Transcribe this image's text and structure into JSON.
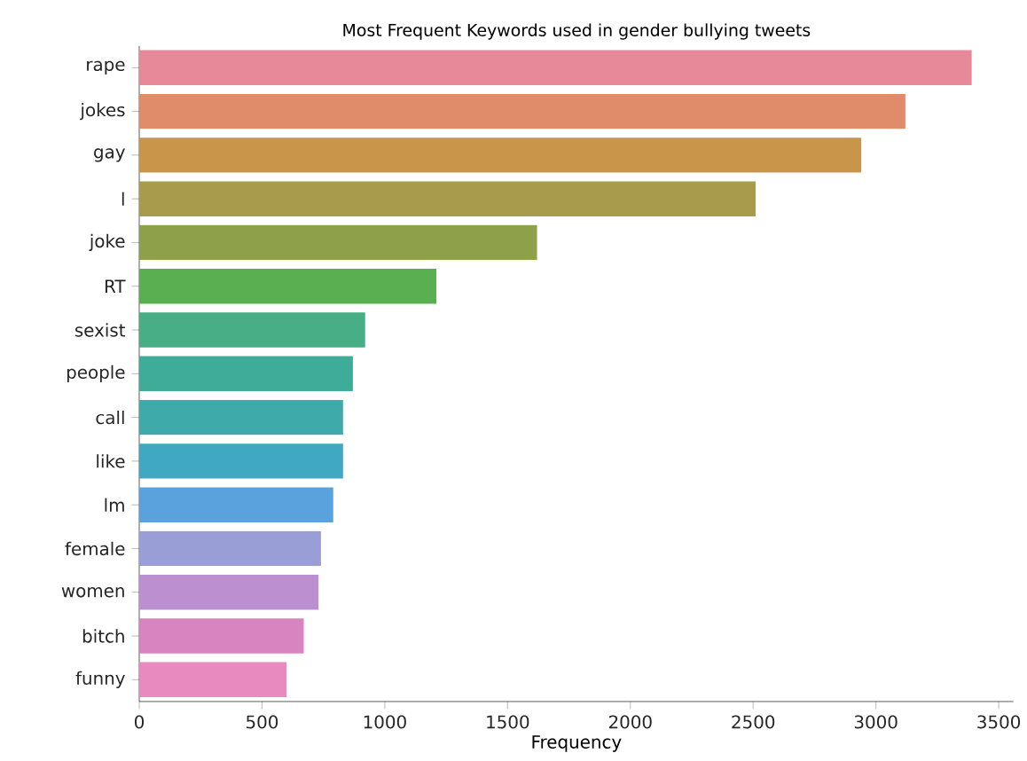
{
  "chart_data": {
    "type": "bar",
    "orientation": "horizontal",
    "title": "Most Frequent Keywords used in gender bullying tweets",
    "xlabel": "Frequency",
    "categories": [
      "rape",
      "jokes",
      "gay",
      "l",
      "joke",
      "RT",
      "sexist",
      "people",
      "call",
      "like",
      "lm",
      "female",
      "women",
      "bitch",
      "funny"
    ],
    "values": [
      3390,
      3120,
      2940,
      2510,
      1620,
      1210,
      920,
      870,
      830,
      830,
      790,
      740,
      730,
      670,
      600
    ],
    "colors": [
      "#e8899a",
      "#e08b6a",
      "#c8954a",
      "#a89b4c",
      "#8ea04a",
      "#5ab050",
      "#48ae86",
      "#3fac9a",
      "#3faaaa",
      "#40a8c2",
      "#5aa2de",
      "#9a9ed6",
      "#bc90d0",
      "#d884c0",
      "#e88ac0"
    ],
    "xlim": [
      0,
      3560
    ],
    "xticks": [
      0,
      500,
      1000,
      1500,
      2000,
      2500,
      3000,
      3500
    ],
    "grid": false
  }
}
